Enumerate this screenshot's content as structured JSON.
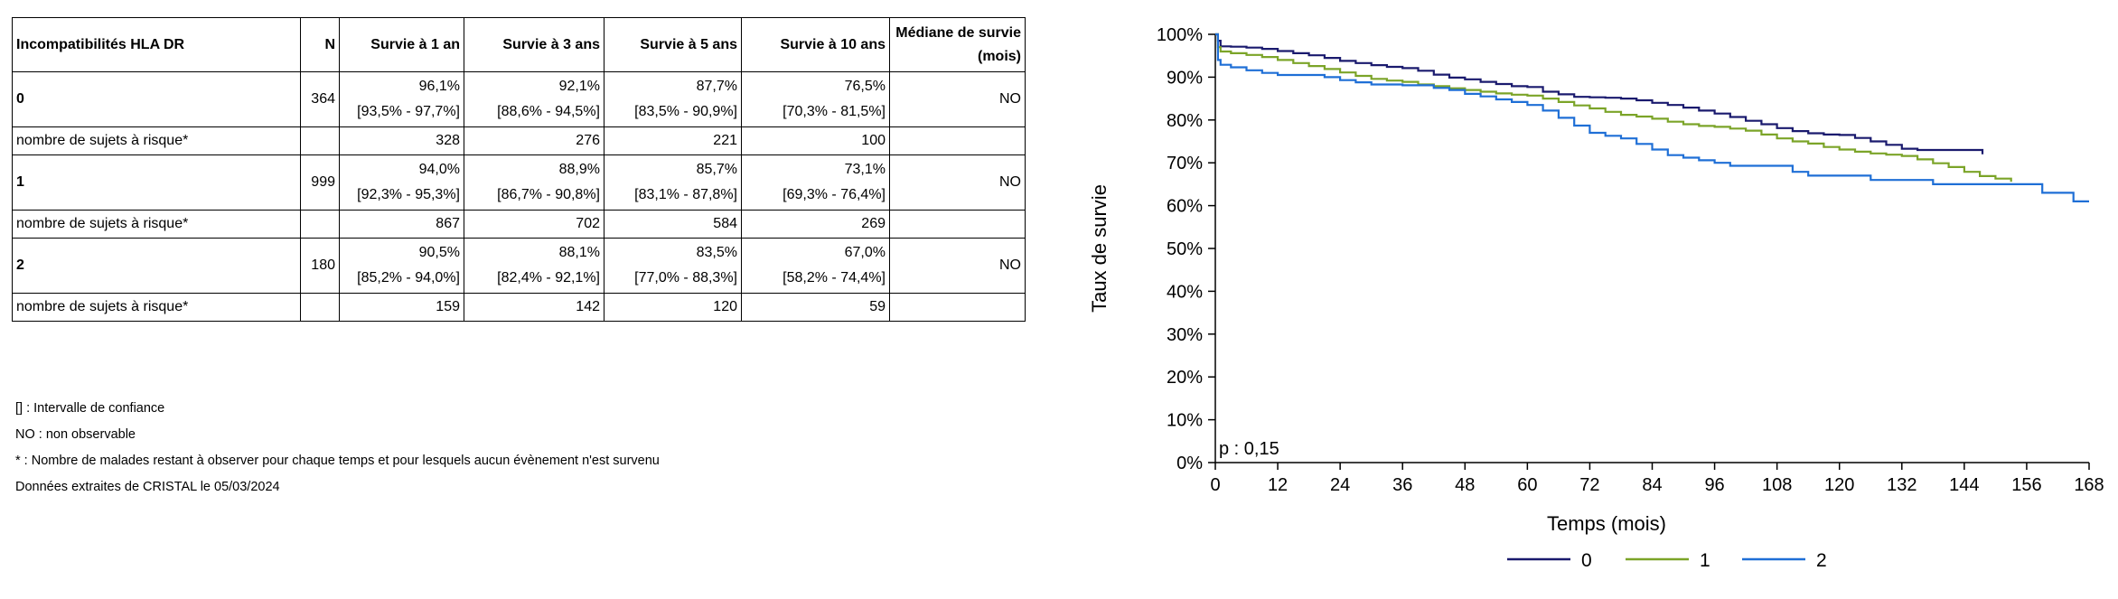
{
  "table": {
    "headers": [
      "Incompatibilités HLA DR",
      "N",
      "Survie à 1 an",
      "Survie à 3 ans",
      "Survie à 5 ans",
      "Survie à 10 ans",
      "Médiane de survie (mois)"
    ],
    "groups": [
      {
        "label": "0",
        "n": "364",
        "values": [
          "96,1%",
          "92,1%",
          "87,7%",
          "76,5%"
        ],
        "ci": [
          "[93,5% - 97,7%]",
          "[88,6% - 94,5%]",
          "[83,5% - 90,9%]",
          "[70,3% - 81,5%]"
        ],
        "median": "NO",
        "risk_label": "nombre de sujets à risque*",
        "at_risk": [
          "328",
          "276",
          "221",
          "100"
        ]
      },
      {
        "label": "1",
        "n": "999",
        "values": [
          "94,0%",
          "88,9%",
          "85,7%",
          "73,1%"
        ],
        "ci": [
          "[92,3% - 95,3%]",
          "[86,7% - 90,8%]",
          "[83,1% - 87,8%]",
          "[69,3% - 76,4%]"
        ],
        "median": "NO",
        "risk_label": "nombre de sujets à risque*",
        "at_risk": [
          "867",
          "702",
          "584",
          "269"
        ]
      },
      {
        "label": "2",
        "n": "180",
        "values": [
          "90,5%",
          "88,1%",
          "83,5%",
          "67,0%"
        ],
        "ci": [
          "[85,2% - 94,0%]",
          "[82,4% - 92,1%]",
          "[77,0% - 88,3%]",
          "[58,2% - 74,4%]"
        ],
        "median": "NO",
        "risk_label": "nombre de sujets à risque*",
        "at_risk": [
          "159",
          "142",
          "120",
          "59"
        ]
      }
    ]
  },
  "notes": {
    "ci": "[] : Intervalle de confiance",
    "no": "NO : non observable",
    "risk": "* : Nombre de malades restant à observer pour chaque temps et pour lesquels aucun évènement n'est survenu",
    "source": "Données extraites de CRISTAL le 05/03/2024"
  },
  "chart_data": {
    "type": "line",
    "xlabel": "Temps (mois)",
    "ylabel": "Taux de survie",
    "xlim": [
      0,
      168
    ],
    "ylim": [
      0,
      100
    ],
    "x_ticks": [
      0,
      12,
      24,
      36,
      48,
      60,
      72,
      84,
      96,
      108,
      120,
      132,
      144,
      156,
      168
    ],
    "y_ticks": [
      0,
      10,
      20,
      30,
      40,
      50,
      60,
      70,
      80,
      90,
      100
    ],
    "y_tick_labels": [
      "0%",
      "10%",
      "20%",
      "30%",
      "40%",
      "50%",
      "60%",
      "70%",
      "80%",
      "90%",
      "100%"
    ],
    "annotation": "p : 0,15",
    "legend_position": "bottom",
    "series": [
      {
        "name": "0",
        "color": "#1a1a6e",
        "x": [
          0,
          0.5,
          1,
          3,
          6,
          9,
          12,
          15,
          18,
          21,
          24,
          27,
          30,
          33,
          36,
          39,
          42,
          45,
          48,
          51,
          54,
          57,
          60,
          63,
          66,
          69,
          72,
          75,
          78,
          81,
          84,
          87,
          90,
          93,
          96,
          99,
          102,
          105,
          108,
          111,
          114,
          117,
          120,
          123,
          126,
          129,
          132,
          135,
          138,
          141,
          144,
          147.5
        ],
        "y": [
          100,
          98.5,
          97.2,
          97.1,
          96.9,
          96.6,
          96.1,
          95.6,
          95.1,
          94.5,
          93.8,
          93.3,
          92.8,
          92.4,
          92.1,
          91.5,
          90.6,
          89.9,
          89.5,
          88.9,
          88.4,
          87.9,
          87.7,
          86.6,
          86.0,
          85.4,
          85.3,
          85.2,
          85.0,
          84.6,
          84.0,
          83.5,
          82.9,
          82.2,
          81.5,
          80.7,
          79.8,
          79.0,
          78.1,
          77.4,
          76.9,
          76.6,
          76.5,
          75.8,
          75.0,
          74.2,
          73.3,
          73.0,
          73.0,
          73.0,
          73.0,
          72.0
        ]
      },
      {
        "name": "1",
        "color": "#7ba428",
        "x": [
          0,
          0.5,
          1,
          3,
          6,
          9,
          12,
          15,
          18,
          21,
          24,
          27,
          30,
          33,
          36,
          39,
          42,
          45,
          48,
          51,
          54,
          57,
          60,
          63,
          66,
          69,
          72,
          75,
          78,
          81,
          84,
          87,
          90,
          93,
          96,
          99,
          102,
          105,
          108,
          111,
          114,
          117,
          120,
          123,
          126,
          129,
          132,
          135,
          138,
          141,
          144,
          147,
          150,
          153
        ],
        "y": [
          100,
          97.0,
          96.0,
          95.6,
          95.2,
          94.7,
          94.0,
          93.3,
          92.6,
          91.9,
          91.1,
          90.3,
          89.6,
          89.2,
          88.9,
          88.3,
          87.9,
          87.4,
          87.0,
          86.6,
          86.2,
          85.9,
          85.7,
          85.0,
          84.2,
          83.4,
          82.7,
          81.9,
          81.2,
          80.8,
          80.3,
          79.6,
          79.0,
          78.6,
          78.4,
          78.0,
          77.5,
          76.6,
          75.7,
          75.0,
          74.5,
          73.7,
          73.1,
          72.6,
          72.2,
          71.9,
          71.6,
          70.8,
          69.9,
          69.0,
          67.9,
          66.9,
          66.3,
          65.6
        ]
      },
      {
        "name": "2",
        "color": "#1f6fd6",
        "x": [
          0,
          0.5,
          1,
          3,
          6,
          9,
          12,
          15,
          18,
          21,
          24,
          27,
          30,
          33,
          36,
          39,
          42,
          45,
          48,
          51,
          54,
          57,
          60,
          63,
          66,
          69,
          72,
          75,
          78,
          81,
          84,
          87,
          90,
          93,
          96,
          99,
          102,
          105,
          108,
          111,
          114,
          117,
          120,
          126,
          132,
          138,
          144,
          150,
          156,
          159,
          162,
          165,
          168
        ],
        "y": [
          100,
          94.0,
          92.9,
          92.3,
          91.6,
          91.0,
          90.5,
          90.5,
          90.5,
          90.0,
          89.3,
          88.8,
          88.3,
          88.3,
          88.1,
          88.1,
          87.5,
          87.0,
          86.1,
          85.5,
          84.8,
          84.2,
          83.5,
          82.2,
          80.5,
          78.7,
          77.0,
          76.3,
          75.7,
          74.4,
          73.1,
          71.8,
          71.2,
          70.6,
          70.0,
          69.3,
          69.3,
          69.3,
          69.3,
          67.9,
          67.0,
          67.0,
          67.0,
          66.0,
          66.0,
          65.0,
          65.0,
          65.0,
          65.0,
          63.0,
          63.0,
          61.0,
          61.0
        ]
      }
    ]
  }
}
